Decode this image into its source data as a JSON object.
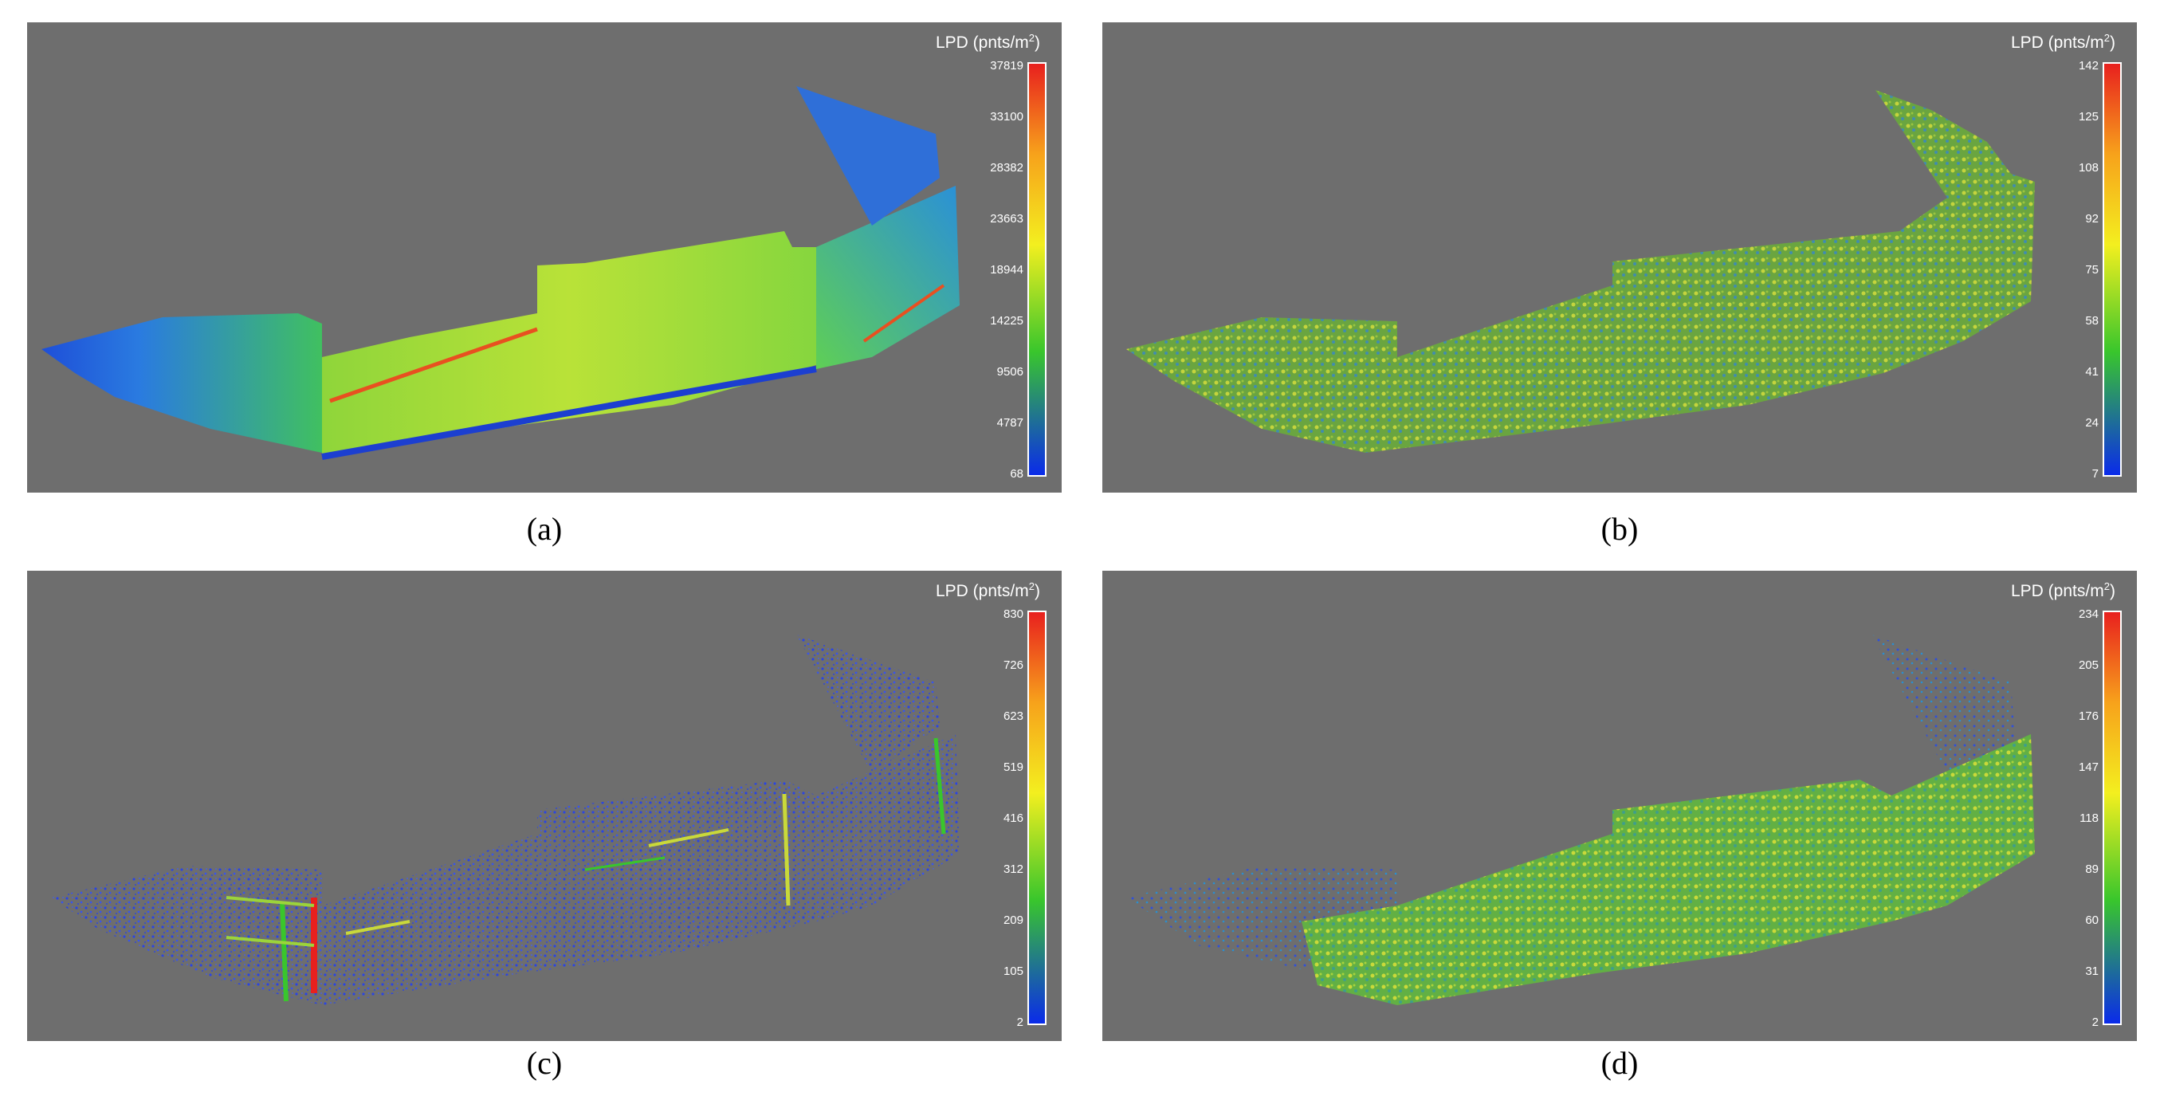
{
  "panels": [
    {
      "id": "a",
      "caption": "(a)",
      "colorbar": {
        "title_prefix": "LPD (pnts/m",
        "title_sup": "2",
        "title_suffix": ")",
        "ticks": [
          "37819",
          "33100",
          "28382",
          "23663",
          "18944",
          "14225",
          "9506",
          "4787",
          "68"
        ]
      }
    },
    {
      "id": "b",
      "caption": "(b)",
      "colorbar": {
        "title_prefix": "LPD (pnts/m",
        "title_sup": "2",
        "title_suffix": ")",
        "ticks": [
          "142",
          "125",
          "108",
          "92",
          "75",
          "58",
          "41",
          "24",
          "7"
        ]
      }
    },
    {
      "id": "c",
      "caption": "(c)",
      "colorbar": {
        "title_prefix": "LPD (pnts/m",
        "title_sup": "2",
        "title_suffix": ")",
        "ticks": [
          "830",
          "726",
          "623",
          "519",
          "416",
          "312",
          "209",
          "105",
          "2"
        ]
      }
    },
    {
      "id": "d",
      "caption": "(d)",
      "colorbar": {
        "title_prefix": "LPD (pnts/m",
        "title_sup": "2",
        "title_suffix": ")",
        "ticks": [
          "234",
          "205",
          "176",
          "147",
          "118",
          "89",
          "60",
          "31",
          "2"
        ]
      }
    }
  ],
  "colors": {
    "background": "#6e6e6e",
    "low": "#0a2bea",
    "mid": "#39c62c",
    "high": "#e8201e"
  }
}
